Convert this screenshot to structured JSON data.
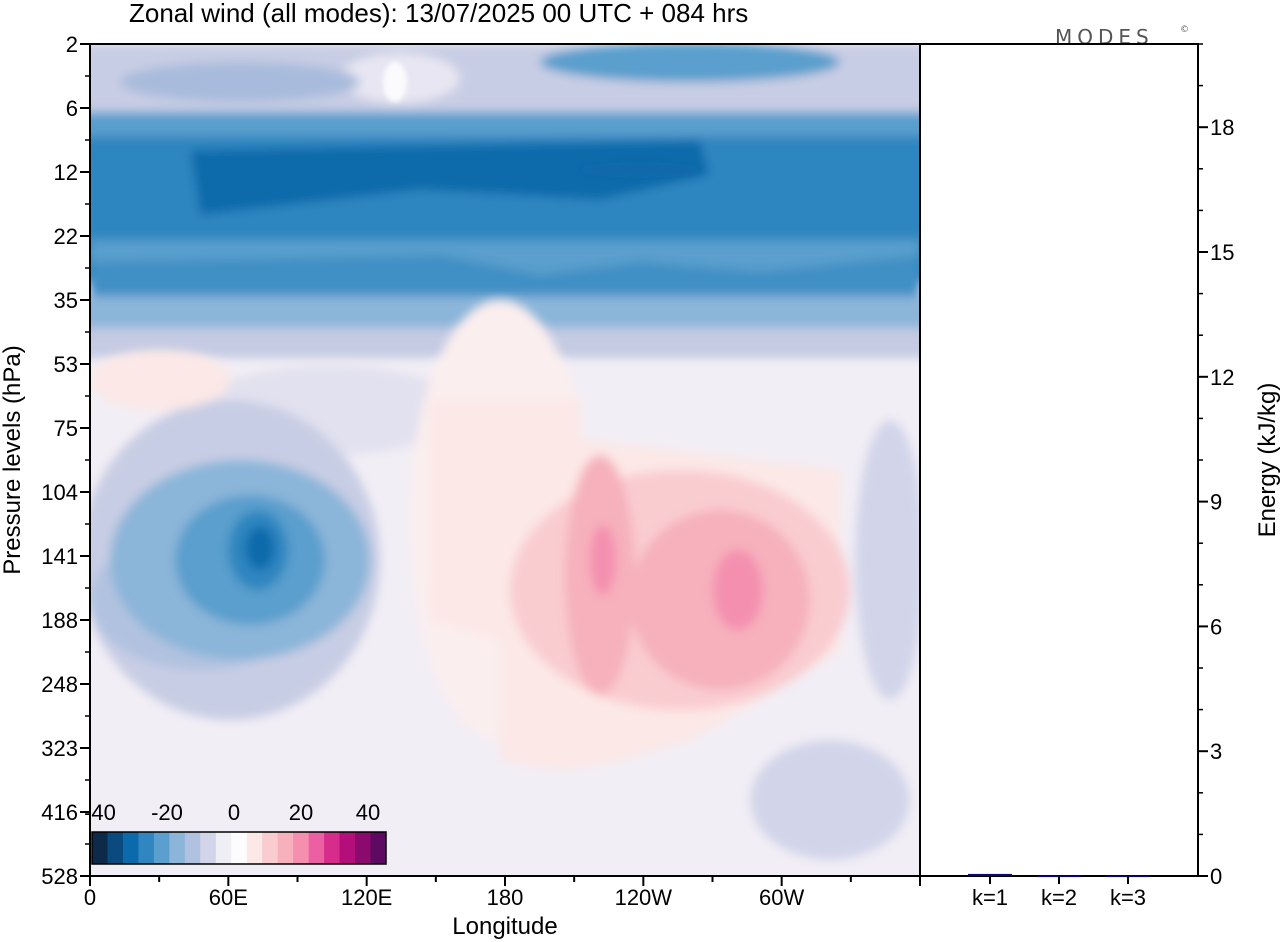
{
  "chart_data": [
    {
      "type": "heatmap",
      "title": "Zonal wind (all modes):  13/07/2025  00 UTC  + 084 hrs",
      "xlabel": "Longitude",
      "ylabel": "Pressure levels (hPa)",
      "x_ticks": [
        {
          "lon": 0,
          "label": "0"
        },
        {
          "lon": 60,
          "label": "60E"
        },
        {
          "lon": 120,
          "label": "120E"
        },
        {
          "lon": 180,
          "label": "180"
        },
        {
          "lon": 240,
          "label": "120W"
        },
        {
          "lon": 300,
          "label": "60W"
        }
      ],
      "x_range": [
        0,
        360
      ],
      "y_levels": [
        "2",
        "6",
        "12",
        "22",
        "35",
        "53",
        "75",
        "104",
        "141",
        "188",
        "248",
        "323",
        "416",
        "528"
      ],
      "colorbar": {
        "labels": [
          "-40",
          "-20",
          "0",
          "20",
          "40"
        ],
        "values": [
          -40,
          -20,
          0,
          20,
          40
        ],
        "colors": [
          "#0d2a4a",
          "#0b4a7e",
          "#0a6aab",
          "#2f86c0",
          "#5a9fcd",
          "#8bb5d9",
          "#b1c2e0",
          "#d2d5ea",
          "#f0eef5",
          "#fdfcfd",
          "#fce8e6",
          "#f9ccd0",
          "#f6b1bc",
          "#f48fb0",
          "#ec5fa2",
          "#d82c8c",
          "#b40e7a",
          "#8a0a6e",
          "#5e0a63"
        ]
      },
      "fields": [
        {
          "level": "2",
          "value": -12
        },
        {
          "level": "6",
          "value": -15
        },
        {
          "level": "12",
          "value": -30
        },
        {
          "level": "22",
          "value": -26
        },
        {
          "level": "35",
          "value": -18
        },
        {
          "level": "53",
          "value": -5
        },
        {
          "level": "141",
          "lon": 65,
          "value": -32
        },
        {
          "level": "141",
          "lon": 228,
          "value": 20
        },
        {
          "level": "141",
          "lon": 282,
          "value": 19
        },
        {
          "level": "188",
          "lon": 250,
          "value": 12
        }
      ]
    },
    {
      "type": "bar",
      "categories": [
        "k=1",
        "k=2",
        "k=3"
      ],
      "values": [
        0.05,
        0.01,
        0.01
      ],
      "ylabel": "Energy (kJ/kg)",
      "ylim": [
        0,
        20
      ],
      "y_ticks": [
        "0",
        "3",
        "6",
        "9",
        "12",
        "15",
        "18"
      ],
      "bar_color": "#0a0a6e"
    }
  ],
  "logo_text": "MODES"
}
